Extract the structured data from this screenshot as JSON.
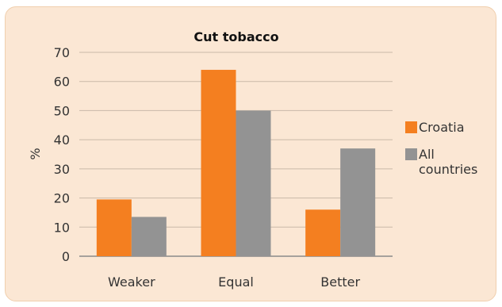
{
  "chart_data": {
    "type": "bar",
    "title": "Cut tobacco",
    "xlabel": "",
    "ylabel": "%",
    "ylim": [
      0,
      70
    ],
    "yticks": [
      0,
      10,
      20,
      30,
      40,
      50,
      60,
      70
    ],
    "categories": [
      "Weaker",
      "Equal",
      "Better"
    ],
    "series": [
      {
        "name": "Croatia",
        "values": [
          19.5,
          64,
          16
        ],
        "color": "#f47f20"
      },
      {
        "name": "All countries",
        "values": [
          13.5,
          50,
          37
        ],
        "color": "#939393"
      }
    ],
    "grid": true,
    "legend": "right"
  },
  "legend_lines": {
    "croatia": "Croatia",
    "all_1": "All",
    "all_2": "countries"
  }
}
